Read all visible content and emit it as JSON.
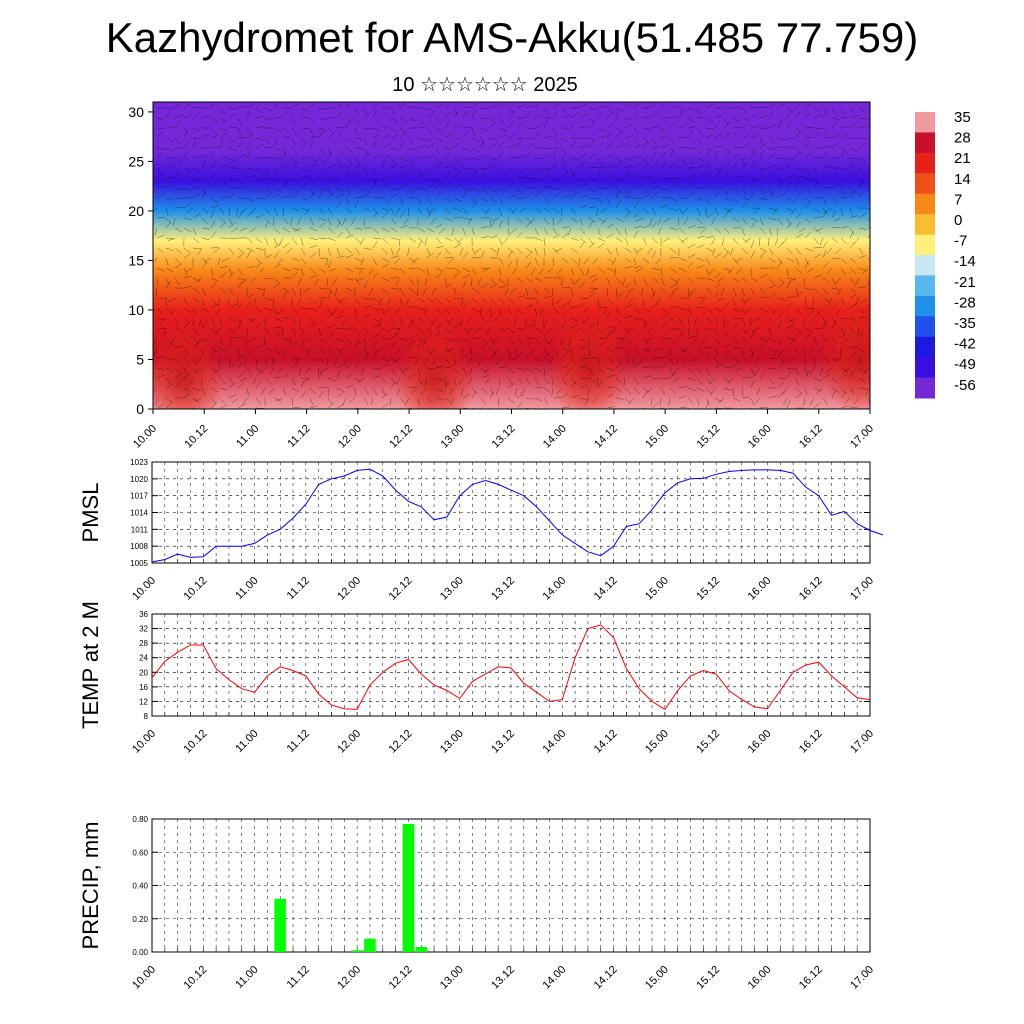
{
  "title": "Kazhydromet for AMS-Akku(51.485 77.759)",
  "subtitle": "10 ☆☆☆☆☆☆ 2025",
  "time_labels": [
    "10.00",
    "10.12",
    "11.00",
    "11.12",
    "12.00",
    "12.12",
    "13.00",
    "13.12",
    "14.00",
    "14.12",
    "15.00",
    "15.12",
    "16.00",
    "16.12",
    "17.00"
  ],
  "chart_data": [
    {
      "type": "heatmap",
      "title": "",
      "ylim": [
        0,
        31
      ],
      "yticks": [
        0,
        5,
        10,
        15,
        20,
        25,
        30
      ],
      "colorbar": {
        "labels": [
          "35",
          "28",
          "21",
          "14",
          "7",
          "0",
          "-7",
          "-14",
          "-21",
          "-28",
          "-35",
          "-42",
          "-49",
          "-56"
        ],
        "colors": [
          "#f09aa0",
          "#c8102a",
          "#e8201a",
          "#f05018",
          "#f88818",
          "#fbbc30",
          "#fff07a",
          "#c8e8f0",
          "#5ab8ee",
          "#1f90e8",
          "#2050ee",
          "#1a1ae0",
          "#3a10e0",
          "#7428d8"
        ]
      },
      "temperature_profile": [
        {
          "z": 0,
          "t": 30
        },
        {
          "z": 5,
          "t": 24
        },
        {
          "z": 10,
          "t": 14
        },
        {
          "z": 14,
          "t": 2
        },
        {
          "z": 17,
          "t": -14
        },
        {
          "z": 20,
          "t": -30
        },
        {
          "z": 23,
          "t": -50
        },
        {
          "z": 26,
          "t": -60
        },
        {
          "z": 30,
          "t": -58
        }
      ],
      "warm_cores": [
        {
          "t": 0.3,
          "z": 3,
          "dt": 10
        },
        {
          "t": 2.75,
          "z": 3,
          "dt": 10
        },
        {
          "t": 4.25,
          "z": 4,
          "dt": 14
        },
        {
          "t": 6.9,
          "z": 5,
          "dt": 12
        }
      ]
    },
    {
      "type": "line",
      "ylabel": "PMSL",
      "ylim": [
        1005,
        1023
      ],
      "yticks": [
        1005,
        1008,
        1011,
        1014,
        1017,
        1020,
        1023
      ],
      "color": "#0000ff",
      "values": [
        1005.2,
        1005.6,
        1006.6,
        1006.0,
        1006.1,
        1008.0,
        1008.0,
        1008.0,
        1008.5,
        1010.0,
        1011.0,
        1013.0,
        1015.5,
        1019.0,
        1020.0,
        1020.5,
        1021.5,
        1021.7,
        1020.5,
        1018.0,
        1016.0,
        1015.0,
        1012.7,
        1013.2,
        1017.0,
        1019.0,
        1019.7,
        1019.0,
        1018.0,
        1017.0,
        1015.0,
        1012.5,
        1010.0,
        1008.5,
        1007.0,
        1006.3,
        1008.0,
        1011.5,
        1012.0,
        1014.5,
        1017.5,
        1019.3,
        1020.0,
        1020.1,
        1020.8,
        1021.3,
        1021.5,
        1021.6,
        1021.6,
        1021.5,
        1021.0,
        1018.5,
        1017.0,
        1013.5,
        1014.2,
        1012.0,
        1010.8,
        1010.0
      ]
    },
    {
      "type": "line",
      "ylabel": "TEMP at 2 M",
      "ylim": [
        8,
        36
      ],
      "yticks": [
        8,
        12,
        16,
        20,
        24,
        28,
        32,
        36
      ],
      "color": "#ff0000",
      "values": [
        18.5,
        23.0,
        25.5,
        27.5,
        27.5,
        21.0,
        18.0,
        15.5,
        14.5,
        19.0,
        21.5,
        20.5,
        19.0,
        14.0,
        11.0,
        10.0,
        9.8,
        16.5,
        20.0,
        22.5,
        23.5,
        19.5,
        16.5,
        15.0,
        12.8,
        17.5,
        19.5,
        21.5,
        21.2,
        17.0,
        14.5,
        12.0,
        12.5,
        24.0,
        32.0,
        33.0,
        29.5,
        21.0,
        15.5,
        12.0,
        9.8,
        15.0,
        19.0,
        20.5,
        19.5,
        15.0,
        12.5,
        10.5,
        10.0,
        15.0,
        20.0,
        22.0,
        22.8,
        19.0,
        16.0,
        13.0,
        12.5
      ]
    },
    {
      "type": "bar",
      "ylabel": "PRECIP, mm",
      "ylim": [
        0,
        0.8
      ],
      "yticks": [
        "0.00",
        "0.20",
        "0.40",
        "0.60",
        "0.80"
      ],
      "color": "#00ff00",
      "bars": [
        {
          "t": 1.25,
          "v": 0.32
        },
        {
          "t": 2.0,
          "v": 0.01
        },
        {
          "t": 2.125,
          "v": 0.08
        },
        {
          "t": 2.5,
          "v": 0.77
        },
        {
          "t": 2.625,
          "v": 0.03
        }
      ]
    }
  ]
}
